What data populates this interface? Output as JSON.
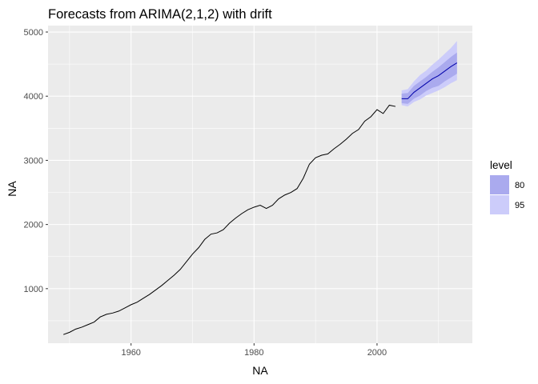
{
  "chart_data": {
    "type": "line",
    "title": "Forecasts from ARIMA(2,1,2) with drift",
    "xlabel": "NA",
    "ylabel": "NA",
    "xlim": [
      1946.5,
      2015.5
    ],
    "ylim": [
      150,
      5100
    ],
    "x_ticks": [
      1960,
      1980,
      2000
    ],
    "y_ticks": [
      1000,
      2000,
      3000,
      4000,
      5000
    ],
    "grid": true,
    "legend": {
      "title": "level",
      "position": "right",
      "entries": [
        {
          "label": "80",
          "color": "#aaaaee"
        },
        {
          "label": "95",
          "color": "#ccccfa"
        }
      ]
    },
    "series": [
      {
        "type": "line",
        "color": "#000000",
        "x": [
          1949,
          1950,
          1951,
          1952,
          1953,
          1954,
          1955,
          1956,
          1957,
          1958,
          1959,
          1960,
          1961,
          1962,
          1963,
          1964,
          1965,
          1966,
          1967,
          1968,
          1969,
          1970,
          1971,
          1972,
          1973,
          1974,
          1975,
          1976,
          1977,
          1978,
          1979,
          1980,
          1981,
          1982,
          1983,
          1984,
          1985,
          1986,
          1987,
          1988,
          1989,
          1990,
          1991,
          1992,
          1993,
          1994,
          1995,
          1996,
          1997,
          1998,
          1999,
          2000,
          2001,
          2002,
          2003
        ],
        "y": [
          285,
          320,
          370,
          400,
          440,
          480,
          560,
          600,
          620,
          650,
          700,
          750,
          790,
          850,
          910,
          980,
          1050,
          1130,
          1210,
          1300,
          1420,
          1540,
          1640,
          1770,
          1850,
          1870,
          1920,
          2020,
          2100,
          2170,
          2230,
          2270,
          2300,
          2250,
          2300,
          2400,
          2460,
          2500,
          2560,
          2720,
          2940,
          3040,
          3080,
          3100,
          3180,
          3250,
          3330,
          3420,
          3480,
          3610,
          3680,
          3790,
          3730,
          3860,
          3840
        ]
      }
    ],
    "forecast": {
      "color": "#0000aa",
      "x": [
        2004,
        2005,
        2006,
        2007,
        2008,
        2009,
        2010,
        2011,
        2012,
        2013
      ],
      "mean": [
        3960,
        3960,
        4060,
        4130,
        4200,
        4270,
        4320,
        4390,
        4460,
        4520
      ],
      "lo80": [
        3890,
        3880,
        3960,
        4010,
        4080,
        4130,
        4160,
        4230,
        4290,
        4350
      ],
      "hi80": [
        4040,
        4050,
        4160,
        4230,
        4300,
        4380,
        4450,
        4530,
        4610,
        4680
      ],
      "lo95": [
        3860,
        3840,
        3910,
        3950,
        4010,
        4050,
        4090,
        4140,
        4200,
        4250
      ],
      "hi95": [
        4090,
        4110,
        4230,
        4330,
        4400,
        4490,
        4570,
        4660,
        4750,
        4860
      ]
    }
  },
  "colors": {
    "panel_bg": "#ebebeb",
    "grid_major": "#ffffff",
    "band80": "#aaaaee",
    "band95": "#ccccfa",
    "forecast_line": "#0000aa",
    "history_line": "#000000"
  }
}
